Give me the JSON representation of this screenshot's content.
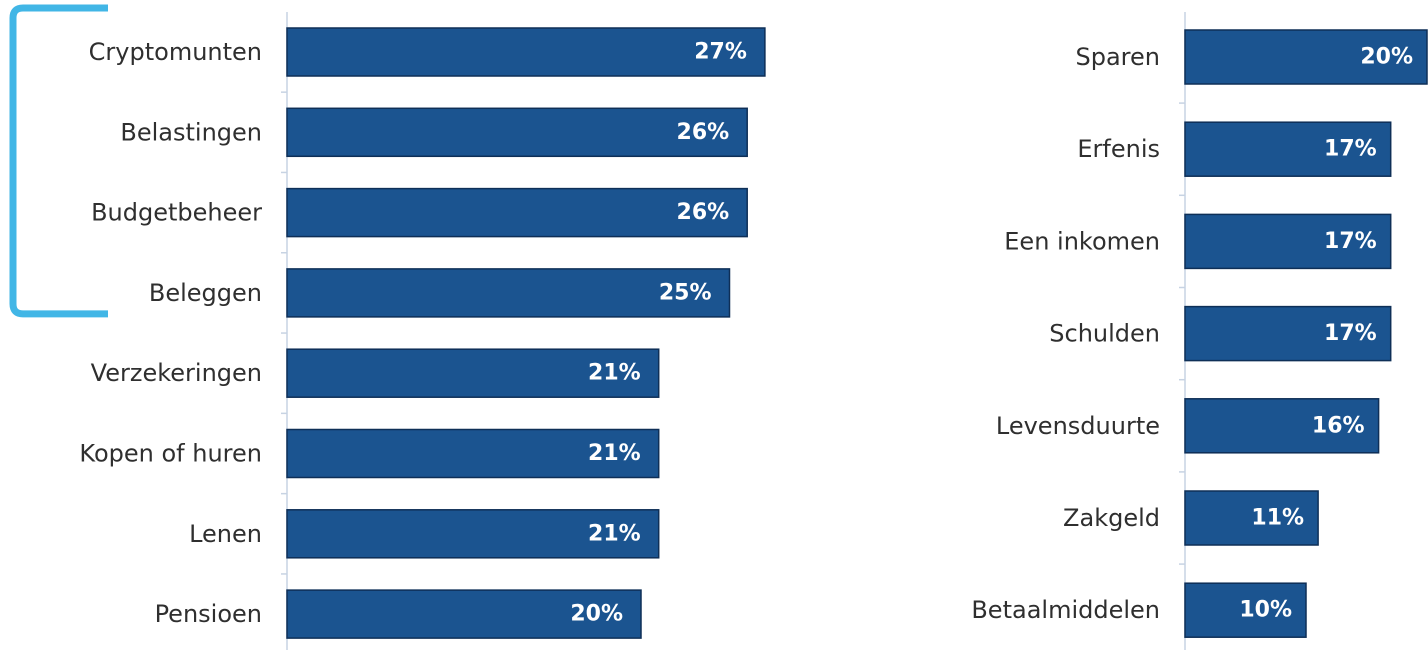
{
  "chart_data": [
    {
      "type": "bar",
      "orientation": "horizontal",
      "categories": [
        "Cryptomunten",
        "Belastingen",
        "Budgetbeheer",
        "Beleggen",
        "Verzekeringen",
        "Kopen of huren",
        "Lenen",
        "Pensioen"
      ],
      "values": [
        27,
        26,
        26,
        25,
        21,
        21,
        21,
        20
      ],
      "labels": [
        "27%",
        "26%",
        "26%",
        "25%",
        "21%",
        "21%",
        "21%",
        "20%"
      ],
      "unit": "%",
      "bar_color": "#1b5490",
      "highlight": {
        "categories": [
          "Cryptomunten",
          "Belastingen",
          "Budgetbeheer",
          "Beleggen"
        ],
        "color": "#41b6e6",
        "style": "bracket"
      },
      "grid": false
    },
    {
      "type": "bar",
      "orientation": "horizontal",
      "categories": [
        "Sparen",
        "Erfenis",
        "Een inkomen",
        "Schulden",
        "Levensduurte",
        "Zakgeld",
        "Betaalmiddelen"
      ],
      "values": [
        20,
        17,
        17,
        17,
        16,
        11,
        10
      ],
      "labels": [
        "20%",
        "17%",
        "17%",
        "17%",
        "16%",
        "11%",
        "10%"
      ],
      "unit": "%",
      "bar_color": "#1b5490",
      "grid": false
    }
  ]
}
